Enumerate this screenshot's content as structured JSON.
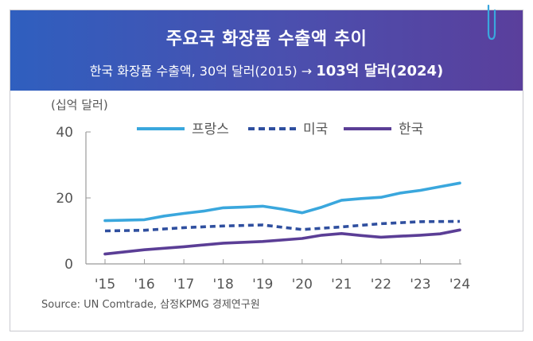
{
  "header": {
    "title": "주요국 화장품 수출액  추이",
    "subtitle_prefix": "한국 화장품 수출액, 30억 달러(2015) → ",
    "subtitle_highlight": "103억 달러(2024)"
  },
  "colors": {
    "france": "#3aa7dd",
    "usa": "#2f4f9f",
    "korea": "#5b3e96",
    "axis": "#999999",
    "text": "#555555"
  },
  "chart_data": {
    "type": "line",
    "ylabel": "(십억 달러)",
    "ylim": [
      0,
      40
    ],
    "yticks": [
      "0",
      "20",
      "40"
    ],
    "categories": [
      "'15",
      "'16",
      "'17",
      "'18",
      "'19",
      "'20",
      "'21",
      "'22",
      "'23",
      "'24"
    ],
    "x": [
      2015,
      2016,
      2017,
      2018,
      2019,
      2020,
      2021,
      2022,
      2023,
      2024
    ],
    "grid": false,
    "legend_position": "top",
    "series": [
      {
        "name": "프랑스",
        "style": "solid",
        "x": [
          2015,
          2016,
          2016.5,
          2017,
          2017.5,
          2018,
          2018.5,
          2019,
          2019.5,
          2020,
          2020.5,
          2021,
          2021.5,
          2022,
          2022.5,
          2023,
          2023.5,
          2024
        ],
        "values": [
          13.1,
          13.4,
          14.5,
          15.3,
          16.0,
          17.0,
          17.2,
          17.5,
          16.6,
          15.5,
          17.2,
          19.3,
          19.8,
          20.2,
          21.5,
          22.3,
          23.4,
          24.5
        ]
      },
      {
        "name": "미국",
        "style": "dashed",
        "x": [
          2015,
          2016,
          2017,
          2018,
          2019,
          2020,
          2021,
          2022,
          2023,
          2024
        ],
        "values": [
          10.0,
          10.2,
          11.0,
          11.5,
          11.8,
          10.4,
          11.2,
          12.2,
          12.8,
          12.9
        ]
      },
      {
        "name": "한국",
        "style": "solid",
        "x": [
          2015,
          2016,
          2017,
          2018,
          2019,
          2020,
          2020.5,
          2021,
          2021.5,
          2022,
          2022.5,
          2023,
          2023.5,
          2024
        ],
        "values": [
          3.0,
          4.3,
          5.2,
          6.3,
          6.8,
          7.7,
          8.7,
          9.2,
          8.6,
          8.1,
          8.4,
          8.7,
          9.1,
          10.3
        ]
      }
    ]
  },
  "source": "Source: UN Comtrade, 삼정KPMG 경제연구원"
}
